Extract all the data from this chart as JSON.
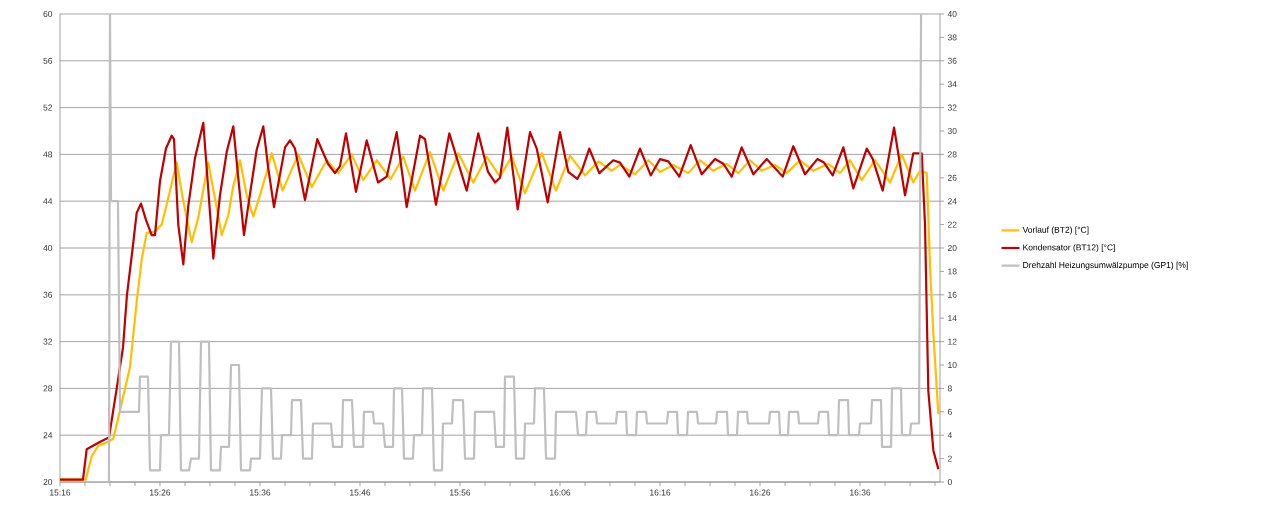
{
  "chart_data": {
    "type": "line",
    "xlim": [
      15.2667,
      16.7333
    ],
    "xticks": [
      {
        "value": 15.2667,
        "label": "15:16"
      },
      {
        "value": 15.3083,
        "label": null
      },
      {
        "value": 15.35,
        "label": null
      },
      {
        "value": 15.3917,
        "label": null
      },
      {
        "value": 15.4333,
        "label": "15:26"
      },
      {
        "value": 15.475,
        "label": null
      },
      {
        "value": 15.5167,
        "label": null
      },
      {
        "value": 15.5583,
        "label": null
      },
      {
        "value": 15.6,
        "label": "15:36"
      },
      {
        "value": 15.6417,
        "label": null
      },
      {
        "value": 15.6833,
        "label": null
      },
      {
        "value": 15.725,
        "label": null
      },
      {
        "value": 15.7667,
        "label": "15:46"
      },
      {
        "value": 15.8083,
        "label": null
      },
      {
        "value": 15.85,
        "label": null
      },
      {
        "value": 15.8917,
        "label": null
      },
      {
        "value": 15.9333,
        "label": "15:56"
      },
      {
        "value": 15.975,
        "label": null
      },
      {
        "value": 16.0167,
        "label": null
      },
      {
        "value": 16.0583,
        "label": null
      },
      {
        "value": 16.1,
        "label": "16:06"
      },
      {
        "value": 16.1417,
        "label": null
      },
      {
        "value": 16.1833,
        "label": null
      },
      {
        "value": 16.225,
        "label": null
      },
      {
        "value": 16.2667,
        "label": "16:16"
      },
      {
        "value": 16.3083,
        "label": null
      },
      {
        "value": 16.35,
        "label": null
      },
      {
        "value": 16.3917,
        "label": null
      },
      {
        "value": 16.4333,
        "label": "16:26"
      },
      {
        "value": 16.475,
        "label": null
      },
      {
        "value": 16.5167,
        "label": null
      },
      {
        "value": 16.5583,
        "label": null
      },
      {
        "value": 16.6,
        "label": "16:36"
      },
      {
        "value": 16.6417,
        "label": null
      },
      {
        "value": 16.6833,
        "label": null
      },
      {
        "value": 16.725,
        "label": null
      }
    ],
    "ylim": [
      20,
      60
    ],
    "yticks": [
      20,
      24,
      28,
      32,
      36,
      40,
      44,
      48,
      52,
      56,
      60
    ],
    "y2lim": [
      0,
      40
    ],
    "y2ticks": [
      0,
      2,
      4,
      6,
      8,
      10,
      12,
      14,
      16,
      18,
      20,
      22,
      24,
      26,
      28,
      30,
      32,
      34,
      36,
      38,
      40
    ],
    "grid": "y",
    "legend": "right",
    "series": [
      {
        "name": "Vorlauf (BT2) [°C]",
        "color": "#ffc000",
        "x": [
          15.2667,
          15.3095,
          15.3195,
          15.3305,
          15.3417,
          15.3555,
          15.3638,
          15.3833,
          15.3945,
          15.4028,
          15.4112,
          15.425,
          15.4362,
          15.4472,
          15.4612,
          15.4722,
          15.4862,
          15.4972,
          15.5055,
          15.5138,
          15.5222,
          15.5362,
          15.5472,
          15.5555,
          15.5667,
          15.5778,
          15.5888,
          15.6,
          15.6112,
          15.6195,
          15.6378,
          15.6638,
          15.6862,
          15.7112,
          15.7305,
          15.7528,
          15.7722,
          15.7945,
          15.8178,
          15.8388,
          15.8583,
          15.8833,
          15.9055,
          15.9305,
          15.9555,
          15.9778,
          16.0,
          16.0195,
          16.0417,
          16.0695,
          16.0933,
          16.1167,
          16.1417,
          16.1638,
          16.1862,
          16.2,
          16.225,
          16.2472,
          16.2667,
          16.2888,
          16.3138,
          16.3333,
          16.3555,
          16.3778,
          16.3972,
          16.4167,
          16.4362,
          16.4583,
          16.4778,
          16.5,
          16.5222,
          16.5472,
          16.5667,
          16.5833,
          16.6028,
          16.625,
          16.65,
          16.6695,
          16.6888,
          16.7,
          16.7112,
          16.7167,
          16.7222,
          16.7305
        ],
        "values": [
          20.2,
          20.2,
          22.2,
          23.1,
          23.3,
          23.7,
          25.5,
          29.8,
          35.4,
          39,
          41.3,
          41.4,
          42,
          44.3,
          47.3,
          44,
          40.5,
          42.6,
          45,
          47.3,
          45,
          41.1,
          42.8,
          45.3,
          47.5,
          44.5,
          42.7,
          44.5,
          46.5,
          48.1,
          44.9,
          48,
          45.2,
          47.5,
          46.4,
          48,
          45.8,
          47.5,
          45.9,
          47.8,
          44.9,
          48.2,
          44.9,
          48.1,
          45.6,
          47.8,
          46.1,
          47.8,
          44.7,
          48.1,
          44.9,
          47.9,
          46.2,
          47.4,
          46.6,
          47.1,
          46.3,
          47.5,
          46.5,
          47.1,
          46.4,
          47.5,
          46.6,
          47.2,
          46.4,
          47.5,
          46.6,
          47.1,
          46.4,
          47.5,
          46.6,
          47.2,
          46.4,
          47.5,
          45.8,
          47.5,
          45.6,
          48,
          45.6,
          46.6,
          46.4,
          38.4,
          32.7,
          25.8
        ]
      },
      {
        "name": "Kondensator (BT12) [°C]",
        "color": "#c00000",
        "x": [
          15.2667,
          15.305,
          15.3112,
          15.3217,
          15.3362,
          15.3483,
          15.3612,
          15.3717,
          15.3783,
          15.3878,
          15.3945,
          15.4017,
          15.41,
          15.4195,
          15.425,
          15.4333,
          15.4433,
          15.4528,
          15.4567,
          15.4638,
          15.4722,
          15.4805,
          15.4917,
          15.5055,
          15.5138,
          15.5222,
          15.5333,
          15.5445,
          15.5555,
          15.5638,
          15.5733,
          15.5833,
          15.5945,
          15.6055,
          15.6133,
          15.6233,
          15.6417,
          15.65,
          15.6583,
          15.675,
          15.6883,
          15.6955,
          15.7133,
          15.725,
          15.7333,
          15.7433,
          15.76,
          15.7778,
          15.7967,
          15.8112,
          15.8278,
          15.8445,
          15.8667,
          15.875,
          15.8933,
          15.9155,
          15.9445,
          15.9638,
          15.98,
          15.9917,
          16.0,
          16.0122,
          16.0295,
          16.05,
          16.0612,
          16.0795,
          16.1,
          16.1138,
          16.1288,
          16.1362,
          16.1488,
          16.1655,
          16.1888,
          16.2,
          16.2155,
          16.2333,
          16.2512,
          16.2667,
          16.2805,
          16.2988,
          16.3178,
          16.3362,
          16.3583,
          16.3722,
          16.3862,
          16.4028,
          16.4222,
          16.4445,
          16.4712,
          16.4888,
          16.5083,
          16.5288,
          16.54,
          16.5545,
          16.5722,
          16.5888,
          16.6112,
          16.6212,
          16.6378,
          16.6567,
          16.675,
          16.6888,
          16.7028,
          16.7083,
          16.7138,
          16.7222,
          16.7305
        ],
        "values": [
          20.2,
          20.2,
          22.8,
          23.1,
          23.5,
          23.8,
          28,
          31.5,
          36,
          40,
          43,
          43.8,
          42.4,
          41.1,
          41.1,
          45.7,
          48.5,
          49.6,
          49.3,
          42,
          38.6,
          43.6,
          47.7,
          50.7,
          45,
          39.1,
          44.5,
          48.2,
          50.4,
          46,
          41.1,
          44.6,
          48.4,
          50.4,
          47,
          43.5,
          48.6,
          49.2,
          48.5,
          44.1,
          47.5,
          49.3,
          47.2,
          46.4,
          47,
          49.8,
          44.8,
          49.2,
          45.6,
          46.1,
          49.9,
          43.5,
          49.6,
          49.3,
          43.7,
          49.8,
          44.9,
          49.8,
          46.5,
          45.6,
          46,
          50.3,
          43.3,
          49.9,
          48.5,
          43.9,
          49.9,
          46.5,
          45.9,
          46.6,
          48.5,
          46.4,
          47.5,
          47.3,
          46.1,
          48.5,
          46.2,
          47.6,
          47.4,
          46.1,
          48.8,
          46.3,
          47.6,
          47.2,
          46.1,
          48.6,
          46.3,
          47.6,
          46.1,
          48.7,
          46.3,
          47.6,
          47.3,
          46.2,
          48.6,
          45.1,
          48.5,
          47.6,
          44.9,
          50.3,
          44.5,
          48.1,
          48.1,
          42,
          27.8,
          22.7,
          21.1
        ]
      },
      {
        "name": "Drehzahl Heizungsumwälzpumpe (GP1) [%]",
        "color": "#bfbfbf",
        "axis": "y2",
        "x": [
          15.2667,
          15.3483,
          15.35,
          15.3517,
          15.3633,
          15.3667,
          15.3983,
          15.4,
          15.4133,
          15.4167,
          15.4333,
          15.435,
          15.4483,
          15.4517,
          15.465,
          15.4683,
          15.4817,
          15.485,
          15.4983,
          15.5017,
          15.515,
          15.5183,
          15.5333,
          15.535,
          15.5483,
          15.5517,
          15.565,
          15.5683,
          15.5833,
          15.585,
          15.6,
          15.6033,
          15.6183,
          15.6217,
          15.635,
          15.6367,
          15.6517,
          15.6533,
          15.6683,
          15.6717,
          15.6867,
          15.6883,
          15.7183,
          15.7217,
          15.7367,
          15.7383,
          15.7533,
          15.7567,
          15.7717,
          15.7733,
          15.7883,
          15.79,
          15.805,
          15.8083,
          15.8217,
          15.8233,
          15.8367,
          15.84,
          15.855,
          15.8567,
          15.87,
          15.8717,
          15.8867,
          15.89,
          15.9033,
          15.905,
          15.92,
          15.9217,
          15.9383,
          15.9417,
          15.9567,
          15.9583,
          15.99,
          15.9933,
          16.0067,
          16.0083,
          16.0233,
          16.0267,
          16.04,
          16.0417,
          16.0567,
          16.0583,
          16.0733,
          16.0767,
          16.0917,
          16.0933,
          16.1267,
          16.13,
          16.1433,
          16.145,
          16.16,
          16.1617,
          16.1933,
          16.195,
          16.21,
          16.2117,
          16.2267,
          16.2283,
          16.2433,
          16.245,
          16.2783,
          16.28,
          16.295,
          16.2967,
          16.3117,
          16.3133,
          16.3283,
          16.33,
          16.36,
          16.3617,
          16.3783,
          16.38,
          16.395,
          16.3967,
          16.4117,
          16.4133,
          16.4483,
          16.45,
          16.465,
          16.4667,
          16.48,
          16.4817,
          16.4967,
          16.4983,
          16.53,
          16.5317,
          16.5467,
          16.5483,
          16.5633,
          16.565,
          16.58,
          16.5817,
          16.5983,
          16.6,
          16.6183,
          16.62,
          16.635,
          16.6367,
          16.6517,
          16.6533,
          16.6683,
          16.67,
          16.6833,
          16.685,
          16.6983,
          16.7017
        ],
        "values": [
          0,
          0,
          40,
          24,
          24,
          6,
          6,
          9,
          9,
          1,
          1,
          4,
          4,
          12,
          12,
          1,
          1,
          2,
          2,
          12,
          12,
          1,
          1,
          3,
          3,
          10,
          10,
          1,
          1,
          2,
          2,
          8,
          8,
          2,
          2,
          4,
          4,
          7,
          7,
          2,
          2,
          5,
          5,
          3,
          3,
          7,
          7,
          3,
          3,
          6,
          6,
          5,
          5,
          3,
          3,
          8,
          8,
          2,
          2,
          4,
          4,
          8,
          8,
          1,
          1,
          5,
          5,
          7,
          7,
          2,
          2,
          6,
          6,
          3,
          3,
          9,
          9,
          2,
          2,
          5,
          5,
          8,
          8,
          2,
          2,
          6,
          6,
          4,
          4,
          6,
          6,
          5,
          5,
          6,
          6,
          4,
          4,
          6,
          6,
          5,
          5,
          6,
          6,
          4,
          4,
          6,
          6,
          5,
          5,
          6,
          6,
          4,
          4,
          6,
          6,
          5,
          5,
          6,
          6,
          4,
          4,
          6,
          6,
          5,
          5,
          6,
          6,
          4,
          4,
          7,
          7,
          4,
          4,
          5,
          5,
          7,
          7,
          3,
          3,
          8,
          8,
          4,
          4,
          5,
          5,
          40
        ]
      }
    ]
  }
}
